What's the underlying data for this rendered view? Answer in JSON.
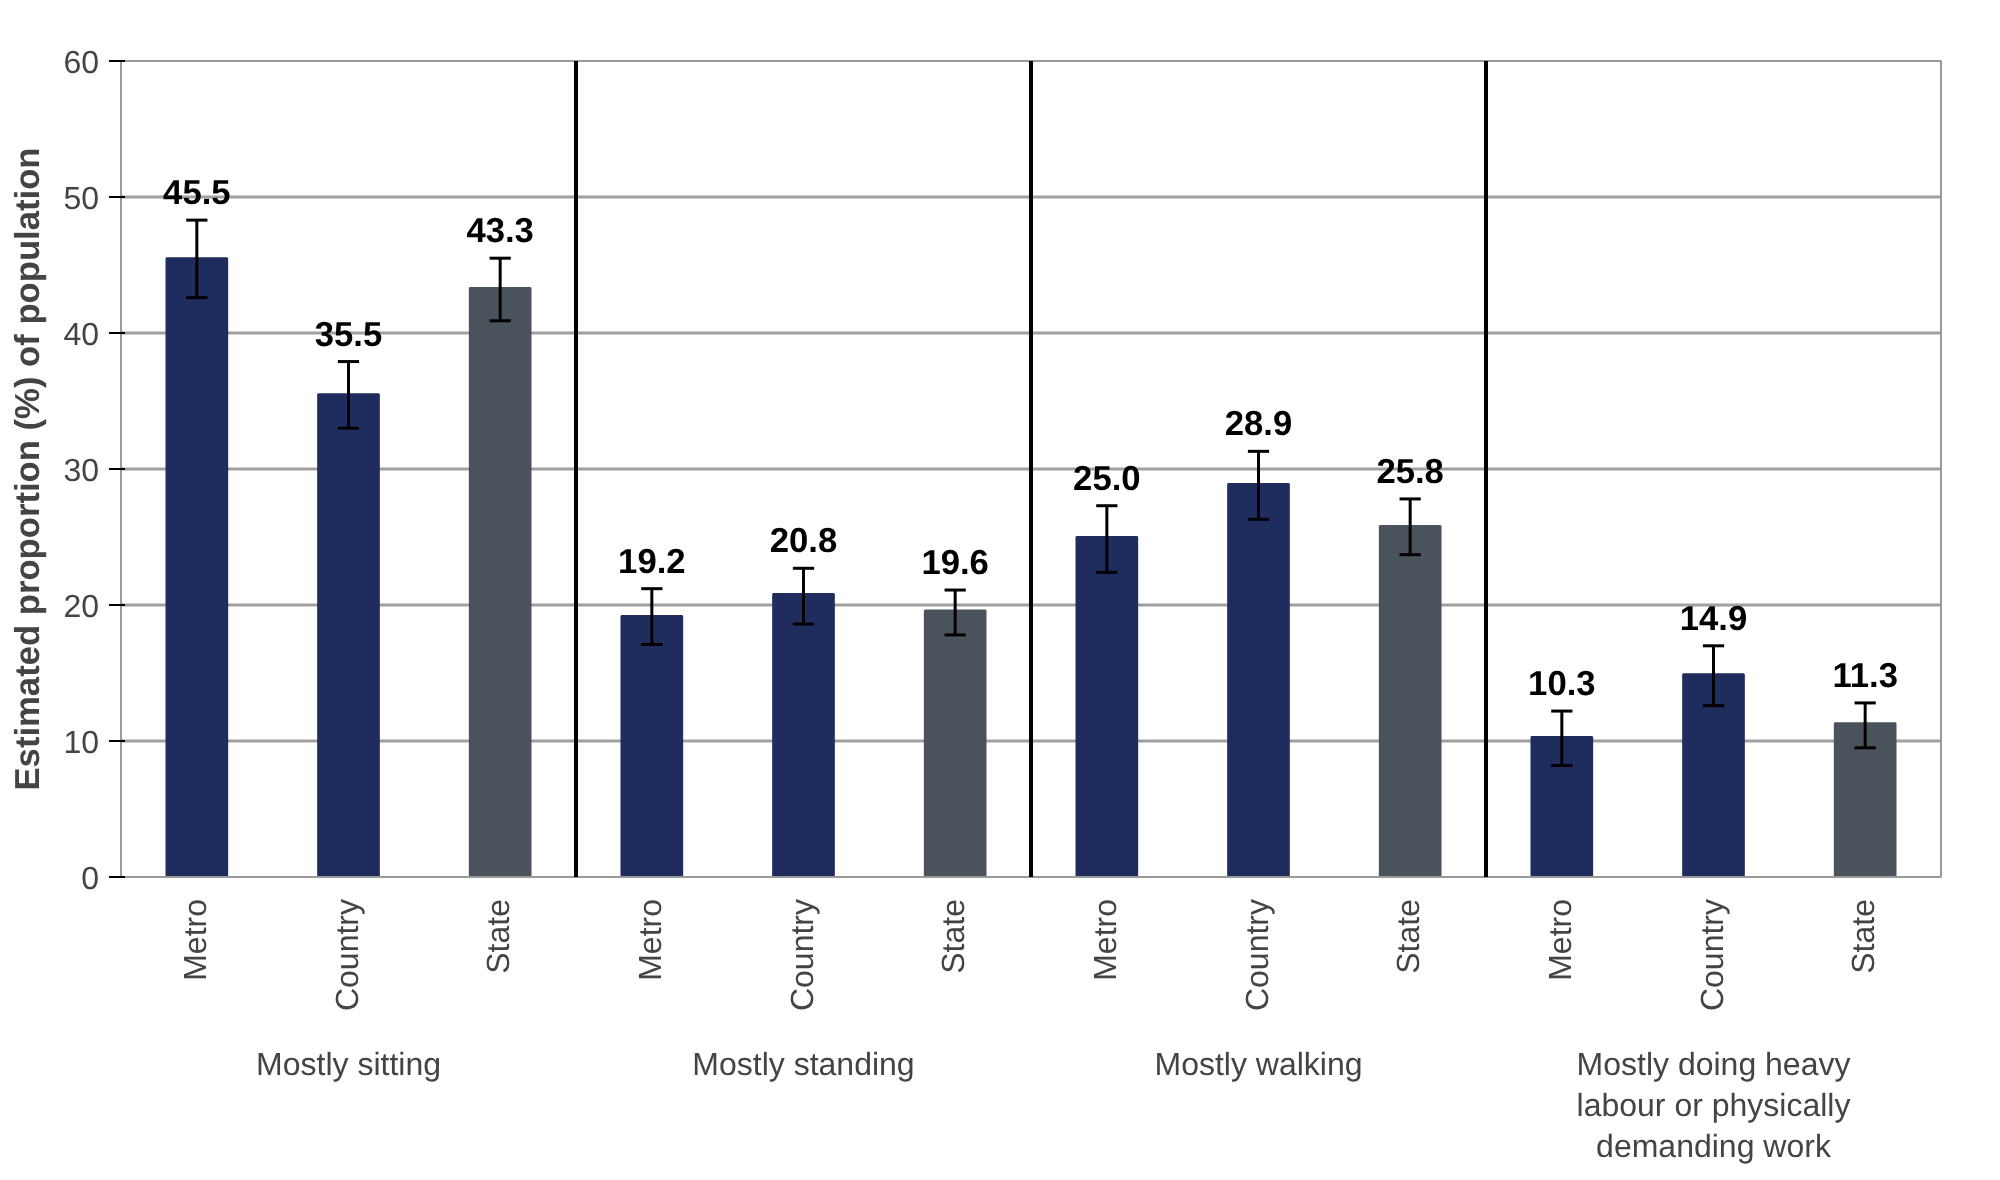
{
  "chart_data": {
    "type": "bar",
    "ylabel": "Estimated proportion (%) of population",
    "categories": [
      "Metro",
      "Country",
      "State",
      "Metro",
      "Country",
      "State",
      "Metro",
      "Country",
      "State",
      "Metro",
      "Country",
      "State"
    ],
    "values": [
      45.5,
      35.5,
      43.3,
      19.2,
      20.8,
      19.6,
      25.0,
      28.9,
      25.8,
      10.3,
      14.9,
      11.3
    ],
    "colors": [
      "#1f2d5e",
      "#1f2d5e",
      "#4a535b",
      "#1f2d5e",
      "#1f2d5e",
      "#4a535b",
      "#1f2d5e",
      "#1f2d5e",
      "#4a535b",
      "#1f2d5e",
      "#1f2d5e",
      "#4a535b"
    ],
    "errors": [
      [
        42.6,
        48.3
      ],
      [
        33.0,
        37.9
      ],
      [
        40.9,
        45.5
      ],
      [
        17.1,
        21.2
      ],
      [
        18.6,
        22.7
      ],
      [
        17.8,
        21.1
      ],
      [
        22.4,
        27.3
      ],
      [
        26.3,
        31.3
      ],
      [
        23.7,
        27.8
      ],
      [
        8.2,
        12.2
      ],
      [
        12.6,
        17.0
      ],
      [
        9.5,
        12.8
      ]
    ],
    "annotations": [
      "Mostly sitting",
      "Mostly standing",
      "Mostly walking",
      "Mostly doing heavy labour or physically demanding work"
    ],
    "value_labels": [
      "45.5",
      "35.5",
      "43.3",
      "19.2",
      "20.8",
      "19.6",
      "25.0",
      "28.9",
      "25.8",
      "10.3",
      "14.9",
      "11.3"
    ],
    "grid": "y",
    "ylim": [
      0,
      60
    ],
    "yticks": [
      0,
      10,
      20,
      30,
      40,
      50,
      60
    ]
  }
}
